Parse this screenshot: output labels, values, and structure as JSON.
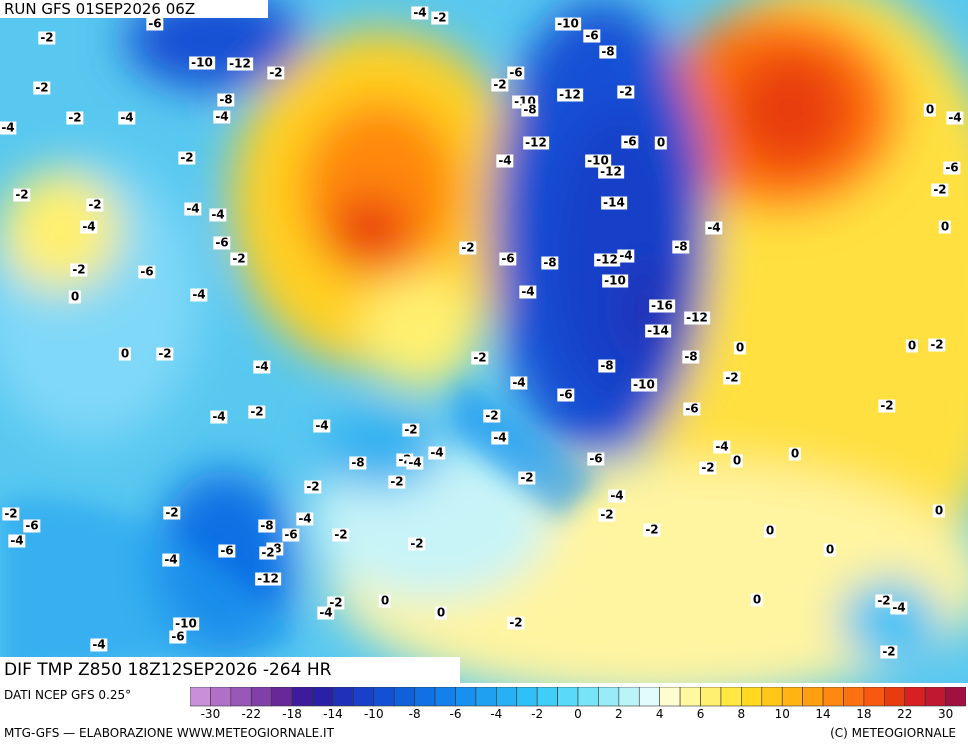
{
  "header": {
    "run": "RUN GFS 01SEP2026 06Z"
  },
  "footer": {
    "title": "DIF TMP Z850 18Z12SEP2026 -264 HR",
    "source": "DATI NCEP GFS 0.25°",
    "credits": "MTG-GFS — ELABORAZIONE WWW.METEOGIORNALE.IT",
    "copyright": "(C) METEOGIORNALE"
  },
  "colorbar": {
    "colors": [
      "#c890d8",
      "#b070c8",
      "#9858b8",
      "#8040a8",
      "#682898",
      "#3c1c9c",
      "#2a20a8",
      "#2030b8",
      "#1840c8",
      "#1450d4",
      "#1060dc",
      "#1070e4",
      "#1480ec",
      "#1890f0",
      "#20a0f0",
      "#28b0f4",
      "#30c0f8",
      "#40cef8",
      "#58daf8",
      "#78e4f8",
      "#98ecf8",
      "#b8f4f8",
      "#e0fcfc",
      "#fffcd0",
      "#fff8a0",
      "#fff070",
      "#ffe840",
      "#ffd820",
      "#ffc818",
      "#ffb414",
      "#ffa010",
      "#ff8810",
      "#ff7010",
      "#f85810",
      "#e83c10",
      "#d82020",
      "#c01830",
      "#a01040"
    ],
    "ticks": [
      -30,
      -22,
      -18,
      -14,
      -10,
      -8,
      -6,
      -4,
      -2,
      0,
      2,
      4,
      6,
      8,
      10,
      14,
      18,
      22,
      30
    ]
  },
  "map": {
    "labels": [
      -6,
      -2,
      -4,
      -2,
      -10,
      -6,
      -8,
      -10,
      -12,
      -2,
      -6,
      -2,
      -2,
      -10,
      -12,
      -2,
      -8,
      -2,
      -4,
      -4,
      -8,
      -4,
      -6,
      0,
      -12,
      -2,
      -4,
      -10,
      -12,
      -4,
      0,
      -2,
      -2,
      -6,
      -2,
      -4,
      -4,
      -14,
      -4,
      -6,
      -2,
      -4,
      0,
      -2,
      -6,
      -8,
      -12,
      -4,
      -8,
      -2,
      -6,
      -10,
      -4,
      -4,
      0,
      -16,
      -12,
      -14,
      0,
      -2,
      0,
      0,
      -2,
      -2,
      -8,
      -4,
      -8,
      -4,
      -10,
      -2,
      -6,
      -2,
      -4,
      -2,
      -2,
      -6,
      -4,
      -2,
      -4,
      -4,
      -4,
      -8,
      -2,
      -4,
      -6,
      0,
      0,
      -2,
      -2,
      -2,
      -2,
      -4,
      -2,
      -2,
      -4,
      -2,
      -6,
      -8,
      -6,
      -2,
      0,
      -4,
      -2,
      -8,
      -6,
      -2,
      0,
      -2,
      -4,
      0,
      -12,
      -2,
      0,
      -4,
      0,
      0,
      -2,
      -4,
      -10,
      -2,
      -6,
      -4,
      -2
    ]
  }
}
